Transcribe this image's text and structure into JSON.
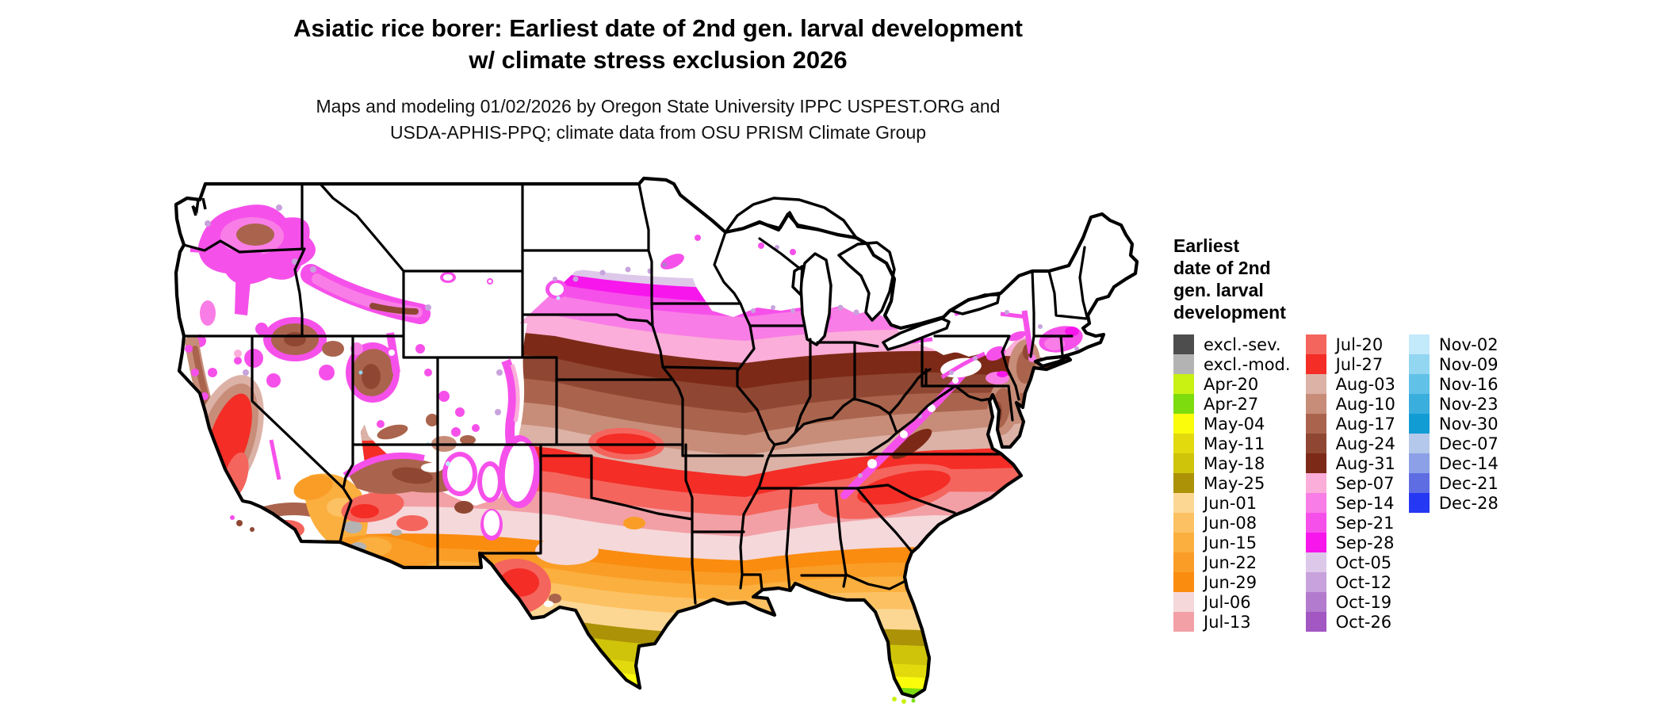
{
  "header": {
    "title_line1": "Asiatic rice borer: Earliest date of 2nd gen. larval development",
    "title_line2": "w/ climate stress exclusion 2026",
    "subtitle_line1": "Maps and modeling 01/02/2026 by Oregon State University IPPC USPEST.ORG and",
    "subtitle_line2": "USDA-APHIS-PPQ; climate data from OSU PRISM Climate Group"
  },
  "legend": {
    "title_lines": [
      "Earliest",
      "date of 2nd",
      "gen. larval",
      "development"
    ],
    "columns": [
      [
        "excl.-sev.",
        "excl.-mod.",
        "Apr-20",
        "Apr-27",
        "May-04",
        "May-11",
        "May-18",
        "May-25",
        "Jun-01",
        "Jun-08",
        "Jun-15",
        "Jun-22",
        "Jun-29",
        "Jul-06",
        "Jul-13"
      ],
      [
        "Jul-20",
        "Jul-27",
        "Aug-03",
        "Aug-10",
        "Aug-17",
        "Aug-24",
        "Aug-31",
        "Sep-07",
        "Sep-14",
        "Sep-21",
        "Sep-28",
        "Oct-05",
        "Oct-12",
        "Oct-19",
        "Oct-26"
      ],
      [
        "Nov-02",
        "Nov-09",
        "Nov-16",
        "Nov-23",
        "Nov-30",
        "Dec-07",
        "Dec-14",
        "Dec-21",
        "Dec-28"
      ]
    ]
  },
  "palette": {
    "excl.-sev.": "#4d4d4d",
    "excl.-mod.": "#b3b3b3",
    "Apr-20": "#c9f112",
    "Apr-27": "#7ddc0e",
    "May-04": "#fbfb0c",
    "May-11": "#e3da0e",
    "May-18": "#cfc409",
    "May-25": "#ab9207",
    "Jun-01": "#fcd794",
    "Jun-08": "#fcc162",
    "Jun-15": "#fbaf3e",
    "Jun-22": "#fa9d26",
    "Jun-29": "#fa8c10",
    "Jul-06": "#f5d8da",
    "Jul-13": "#f2a0a6",
    "Jul-20": "#f4655d",
    "Jul-27": "#f42d26",
    "Aug-03": "#dcb2a7",
    "Aug-10": "#c78d79",
    "Aug-17": "#aa644d",
    "Aug-24": "#8f4733",
    "Aug-31": "#7c2a17",
    "Sep-07": "#fbaed9",
    "Sep-14": "#f97de6",
    "Sep-21": "#f650ea",
    "Sep-28": "#f716ec",
    "Oct-05": "#dec8ea",
    "Oct-12": "#c8a2dc",
    "Oct-19": "#b37bcd",
    "Oct-26": "#a257c3",
    "Nov-02": "#c2eafb",
    "Nov-09": "#92d6f1",
    "Nov-16": "#62c1e7",
    "Nov-23": "#3aaedd",
    "Nov-30": "#119cd3",
    "Dec-07": "#b3c8eb",
    "Dec-14": "#8ca0e7",
    "Dec-21": "#5f6de3",
    "Dec-28": "#2538f3"
  },
  "map_bands_order_south_to_north": [
    "Apr-20",
    "Apr-27",
    "May-04",
    "May-11",
    "May-18",
    "May-25",
    "Jun-01",
    "Jun-08",
    "Jun-15",
    "Jun-22",
    "Jun-29",
    "Jul-06",
    "Jul-13",
    "Jul-20",
    "Jul-27",
    "Aug-03",
    "Aug-10",
    "Aug-17",
    "Aug-24",
    "Aug-31",
    "Sep-07",
    "Sep-14",
    "Sep-21",
    "Sep-28",
    "Oct-05"
  ]
}
